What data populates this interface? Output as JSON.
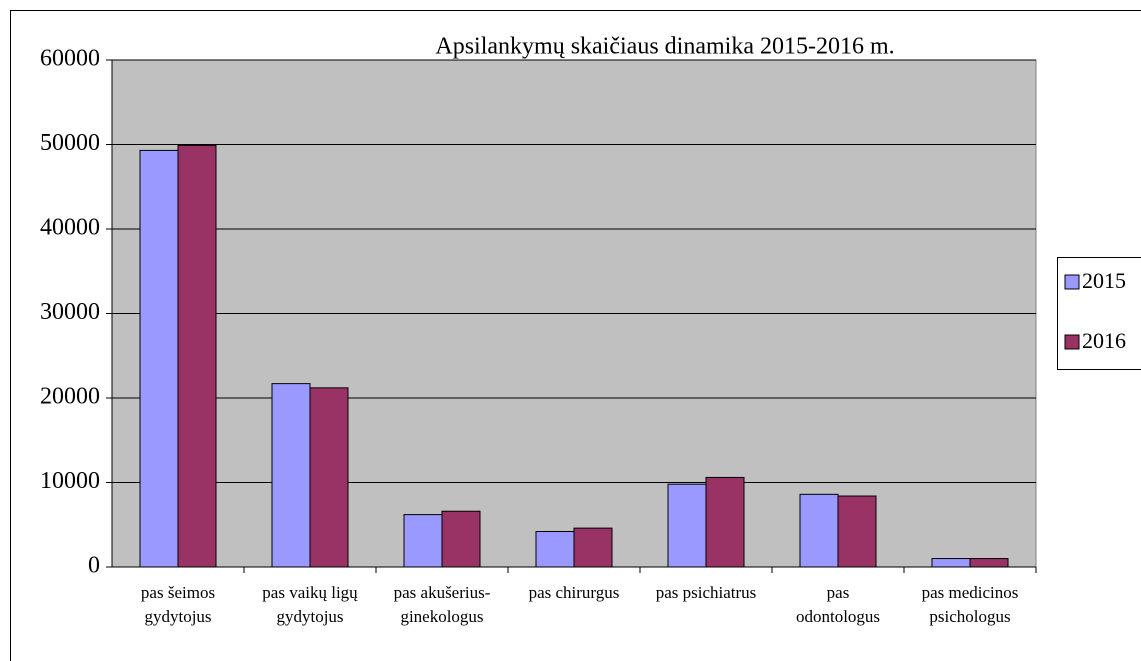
{
  "chart_data": {
    "type": "bar",
    "title": "Apsilankymų skaičiaus dinamika 2015-2016  m.",
    "categories": [
      [
        "pas šeimos",
        "gydytojus"
      ],
      [
        "pas vaikų ligų",
        "gydytojus"
      ],
      [
        "pas akušerius-",
        "ginekologus"
      ],
      [
        "pas chirurgus"
      ],
      [
        "pas psichiatrus"
      ],
      [
        "pas",
        "odontologus"
      ],
      [
        "pas medicinos",
        "psichologus"
      ]
    ],
    "series": [
      {
        "name": "2015",
        "color": "#9999ff",
        "values": [
          49300,
          21700,
          6200,
          4200,
          9800,
          8600,
          1000
        ]
      },
      {
        "name": "2016",
        "color": "#993366",
        "values": [
          49900,
          21200,
          6600,
          4600,
          10600,
          8400,
          1000
        ]
      }
    ],
    "ylim": [
      0,
      60000
    ],
    "yticks": [
      0,
      10000,
      20000,
      30000,
      40000,
      50000,
      60000
    ],
    "grid": true,
    "legend": "right"
  }
}
